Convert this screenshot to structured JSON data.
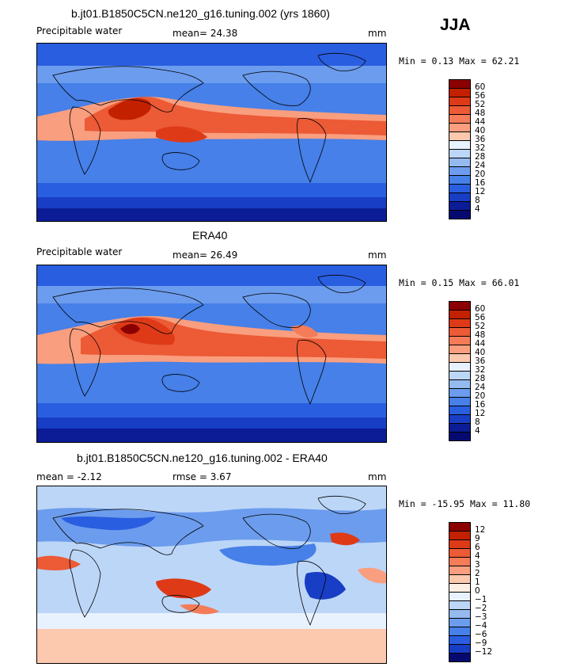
{
  "season": "JJA",
  "panels": [
    {
      "title": "b.jt01.B1850C5CN.ne120_g16.tuning.002 (yrs 1860)",
      "left_label": "Precipitable water",
      "mid_label": "mean=  24.38",
      "units": "mm",
      "minmax": "Min =   0.13 Max =  62.21"
    },
    {
      "title": "ERA40",
      "left_label": "Precipitable water",
      "mid_label": "mean=  26.49",
      "units": "mm",
      "minmax": "Min =   0.15 Max =  66.01"
    },
    {
      "title": "b.jt01.B1850C5CN.ne120_g16.tuning.002 - ERA40",
      "left_label": "mean =  -2.12",
      "mid_label": "rmse =   3.67",
      "units": "mm",
      "minmax": "Min = -15.95 Max =  11.80"
    }
  ],
  "legends": [
    {
      "labels": [
        "60",
        "56",
        "52",
        "48",
        "44",
        "40",
        "36",
        "32",
        "28",
        "24",
        "20",
        "16",
        "12",
        "8",
        "4"
      ],
      "colors": [
        "#8b0000",
        "#c32000",
        "#de3a18",
        "#ec5a36",
        "#f47c58",
        "#f99e7e",
        "#fcc8ae",
        "#e8f2ff",
        "#bcd6f7",
        "#94baf0",
        "#6c9ced",
        "#4680e8",
        "#2a5ee0",
        "#183ec6",
        "#0c1c96",
        "#060a70"
      ]
    },
    {
      "labels": [
        "60",
        "56",
        "52",
        "48",
        "44",
        "40",
        "36",
        "32",
        "28",
        "24",
        "20",
        "16",
        "12",
        "8",
        "4"
      ],
      "colors": [
        "#8b0000",
        "#c32000",
        "#de3a18",
        "#ec5a36",
        "#f47c58",
        "#f99e7e",
        "#fcc8ae",
        "#e8f2ff",
        "#bcd6f7",
        "#94baf0",
        "#6c9ced",
        "#4680e8",
        "#2a5ee0",
        "#183ec6",
        "#0c1c96",
        "#060a70"
      ]
    },
    {
      "labels": [
        "12",
        "9",
        "6",
        "4",
        "3",
        "2",
        "1",
        "0",
        "−1",
        "−2",
        "−3",
        "−4",
        "−6",
        "−9",
        "−12"
      ],
      "colors": [
        "#8b0000",
        "#c32000",
        "#de3a18",
        "#ec5a36",
        "#f47c58",
        "#f99e7e",
        "#fcc8ae",
        "#fdeee4",
        "#e8f2ff",
        "#bcd6f7",
        "#94baf0",
        "#6c9ced",
        "#4680e8",
        "#2a5ee0",
        "#183ec6",
        "#060a70"
      ]
    }
  ]
}
